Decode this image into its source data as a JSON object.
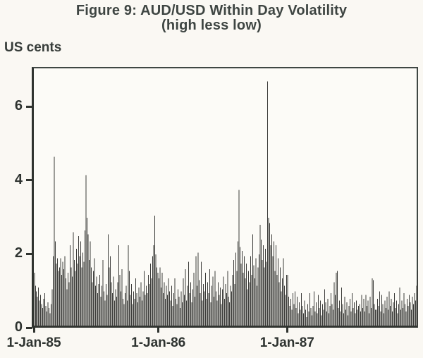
{
  "figure": {
    "title": "Figure 9: AUD/USD Within Day Volatility",
    "subtitle": "(high less low)",
    "y_axis_unit": "US cents"
  },
  "colors": {
    "bar": "#3c3c3a",
    "axis": "#2f332f",
    "frame": "#3f4743",
    "text": "#3e4542",
    "background": "#faf8f3",
    "plot_background": "#fcfbf7"
  },
  "chart_data": {
    "type": "bar",
    "title": "Figure 9: AUD/USD Within Day Volatility",
    "subtitle": "(high less low)",
    "xlabel": "",
    "ylabel": "US cents",
    "ylim": [
      0,
      7
    ],
    "yticks": [
      0,
      2,
      4,
      6
    ],
    "grid": false,
    "legend": false,
    "x_ticks": [
      {
        "label": "1-Jan-85",
        "index": 0
      },
      {
        "label": "1-Jan-86",
        "index": 118
      },
      {
        "label": "1-Jan-87",
        "index": 240
      }
    ],
    "values": [
      1.45,
      1.1,
      0.95,
      0.8,
      1.05,
      0.7,
      0.85,
      0.6,
      0.5,
      0.75,
      0.9,
      0.55,
      0.4,
      0.65,
      0.5,
      0.35,
      0.6,
      1.0,
      1.9,
      4.6,
      2.3,
      1.7,
      1.85,
      1.5,
      1.6,
      1.85,
      1.4,
      1.75,
      1.55,
      1.9,
      1.3,
      1.0,
      1.45,
      1.2,
      2.2,
      1.6,
      1.35,
      2.55,
      1.8,
      1.5,
      2.1,
      1.7,
      2.45,
      1.9,
      2.3,
      1.6,
      2.0,
      1.75,
      2.6,
      4.1,
      2.95,
      2.5,
      1.8,
      2.3,
      1.6,
      1.2,
      1.5,
      1.85,
      1.1,
      1.35,
      0.9,
      1.15,
      1.4,
      0.8,
      1.1,
      1.8,
      0.95,
      0.7,
      1.15,
      0.85,
      2.5,
      1.6,
      1.9,
      1.2,
      0.9,
      1.35,
      0.7,
      1.0,
      0.8,
      1.2,
      2.2,
      1.4,
      0.95,
      1.55,
      0.75,
      0.6,
      0.9,
      1.1,
      0.7,
      2.2,
      1.5,
      0.85,
      1.15,
      0.6,
      0.95,
      0.75,
      1.3,
      0.9,
      0.65,
      1.05,
      0.8,
      1.2,
      0.7,
      0.95,
      1.5,
      0.85,
      1.1,
      0.9,
      1.4,
      1.15,
      1.7,
      1.3,
      1.9,
      2.2,
      3.0,
      1.95,
      1.6,
      1.45,
      1.3,
      1.6,
      1.05,
      1.45,
      0.9,
      1.2,
      0.75,
      1.1,
      0.85,
      1.3,
      0.95,
      0.7,
      1.1,
      0.55,
      0.9,
      1.3,
      0.75,
      0.6,
      1.0,
      0.8,
      0.5,
      0.95,
      0.65,
      1.3,
      0.85,
      1.55,
      0.7,
      1.1,
      1.75,
      0.9,
      1.2,
      0.65,
      1.0,
      1.45,
      0.8,
      1.9,
      1.1,
      2.0,
      1.25,
      0.9,
      1.75,
      0.7,
      1.15,
      0.95,
      1.45,
      0.75,
      1.2,
      0.9,
      1.55,
      0.65,
      1.1,
      1.35,
      0.8,
      1.5,
      0.95,
      0.7,
      1.2,
      0.85,
      1.05,
      0.6,
      1.0,
      1.35,
      0.75,
      1.15,
      0.9,
      1.5,
      0.8,
      0.65,
      1.1,
      0.95,
      1.4,
      1.8,
      1.15,
      2.0,
      1.5,
      2.3,
      3.7,
      2.15,
      1.7,
      2.05,
      1.45,
      1.9,
      1.3,
      1.7,
      1.0,
      1.5,
      1.2,
      1.9,
      1.4,
      2.5,
      1.65,
      1.3,
      1.85,
      1.1,
      1.6,
      1.95,
      2.75,
      2.35,
      1.8,
      2.2,
      1.6,
      2.1,
      1.75,
      6.65,
      2.95,
      2.8,
      2.2,
      2.5,
      1.9,
      2.3,
      1.5,
      2.2,
      1.4,
      1.85,
      1.2,
      1.6,
      0.95,
      1.3,
      1.85,
      1.1,
      0.85,
      1.4,
      1.4,
      0.8,
      0.55,
      0.75,
      0.45,
      0.9,
      0.6,
      0.95,
      0.5,
      0.8,
      0.35,
      0.65,
      0.45,
      0.9,
      0.55,
      0.35,
      0.7,
      0.45,
      0.25,
      0.6,
      0.4,
      0.9,
      0.5,
      0.3,
      0.55,
      0.95,
      0.4,
      0.65,
      0.35,
      0.85,
      0.5,
      0.7,
      0.3,
      0.6,
      0.45,
      1.0,
      0.65,
      0.4,
      0.75,
      0.35,
      0.55,
      0.9,
      0.6,
      0.45,
      1.2,
      0.85,
      1.45,
      1.5,
      0.5,
      0.7,
      0.4,
      1.05,
      0.6,
      0.35,
      0.8,
      0.45,
      0.65,
      0.3,
      0.55,
      0.75,
      0.4,
      0.9,
      0.5,
      0.65,
      0.35,
      0.7,
      0.45,
      0.55,
      0.6,
      0.4,
      0.85,
      0.5,
      0.75,
      0.4,
      0.85,
      0.55,
      0.7,
      0.35,
      0.8,
      0.5,
      1.3,
      1.25,
      0.6,
      0.45,
      0.45,
      0.75,
      0.55,
      0.95,
      0.4,
      0.85,
      0.6,
      0.35,
      0.7,
      0.5,
      0.8,
      0.45,
      0.95,
      0.55,
      0.75,
      0.4,
      0.65,
      0.9,
      0.5,
      0.7,
      0.35,
      0.6,
      1.05,
      0.45,
      0.7,
      0.5,
      0.9,
      0.6,
      0.4,
      0.75,
      0.55,
      0.85,
      0.65,
      0.45,
      0.8,
      0.6,
      0.9,
      0.7,
      1.1,
      1.5
    ]
  }
}
